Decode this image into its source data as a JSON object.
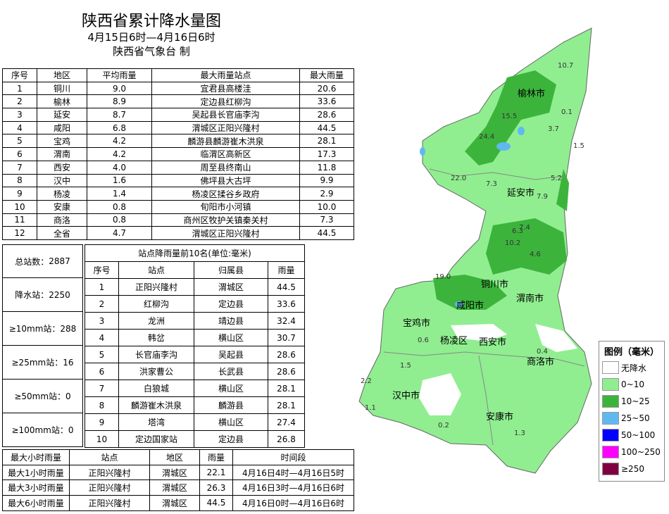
{
  "header": {
    "title": "陕西省累计降水量图",
    "period": "4月15日6时—4月16日6时",
    "issuer": "陕西省气象台 制"
  },
  "region_table": {
    "columns": [
      "序号",
      "地区",
      "平均雨量",
      "最大雨量站点",
      "最大雨量"
    ],
    "rows": [
      [
        "1",
        "铜川",
        "9.0",
        "宜君县高楼洼",
        "20.6"
      ],
      [
        "2",
        "榆林",
        "8.9",
        "定边县红柳沟",
        "33.6"
      ],
      [
        "3",
        "延安",
        "8.7",
        "吴起县长官庙李沟",
        "28.6"
      ],
      [
        "4",
        "咸阳",
        "6.8",
        "渭城区正阳兴隆村",
        "44.5"
      ],
      [
        "5",
        "宝鸡",
        "4.2",
        "麟游县麟游崔木洪泉",
        "28.1"
      ],
      [
        "6",
        "渭南",
        "4.2",
        "临渭区高新区",
        "17.3"
      ],
      [
        "7",
        "西安",
        "4.0",
        "周至县终南山",
        "11.8"
      ],
      [
        "8",
        "汉中",
        "1.6",
        "佛坪县大古坪",
        "9.9"
      ],
      [
        "9",
        "杨凌",
        "1.4",
        "杨凌区揉谷乡政府",
        "2.9"
      ],
      [
        "10",
        "安康",
        "0.8",
        "旬阳市小河镇",
        "10.0"
      ],
      [
        "11",
        "商洛",
        "0.8",
        "商州区牧护关镇秦关村",
        "7.3"
      ],
      [
        "12",
        "全省",
        "4.7",
        "渭城区正阳兴隆村",
        "44.5"
      ]
    ]
  },
  "summary": [
    {
      "label": "总站数：",
      "value": "2887"
    },
    {
      "label": "降水站：",
      "value": "2250"
    },
    {
      "label": "≥10mm站：",
      "value": "288"
    },
    {
      "label": "≥25mm站：",
      "value": "16"
    },
    {
      "label": "≥50mm站：",
      "value": "0"
    },
    {
      "label": "≥100mm站：",
      "value": "0"
    }
  ],
  "top10": {
    "title": "站点降雨量前10名(单位:毫米)",
    "columns": [
      "序号",
      "站点",
      "归属县",
      "雨量"
    ],
    "rows": [
      [
        "1",
        "正阳兴隆村",
        "渭城区",
        "44.5"
      ],
      [
        "2",
        "红柳沟",
        "定边县",
        "33.6"
      ],
      [
        "3",
        "龙洲",
        "靖边县",
        "32.4"
      ],
      [
        "4",
        "韩岔",
        "横山区",
        "30.7"
      ],
      [
        "5",
        "长官庙李沟",
        "吴起县",
        "28.6"
      ],
      [
        "6",
        "洪家曹公",
        "长武县",
        "28.6"
      ],
      [
        "7",
        "白狼城",
        "横山区",
        "28.1"
      ],
      [
        "8",
        "麟游崔木洪泉",
        "麟游县",
        "28.1"
      ],
      [
        "9",
        "塔湾",
        "横山区",
        "27.4"
      ],
      [
        "10",
        "定边国家站",
        "定边县",
        "26.8"
      ]
    ]
  },
  "hourly": {
    "columns": [
      "最大小时雨量",
      "站点",
      "地区",
      "雨量",
      "时间段"
    ],
    "rows": [
      [
        "最大1小时雨量",
        "正阳兴隆村",
        "渭城区",
        "22.1",
        "4月16日4时—4月16日5时"
      ],
      [
        "最大3小时雨量",
        "正阳兴隆村",
        "渭城区",
        "26.3",
        "4月16日3时—4月16日6时"
      ],
      [
        "最大6小时雨量",
        "正阳兴隆村",
        "渭城区",
        "44.5",
        "4月16日0时—4月16日6时"
      ]
    ]
  },
  "legend": {
    "title": "图例（毫米）",
    "items": [
      {
        "label": "无降水",
        "color": "#ffffff"
      },
      {
        "label": "0~10",
        "color": "#90ee90"
      },
      {
        "label": "10~25",
        "color": "#3cb43c"
      },
      {
        "label": "25~50",
        "color": "#60b8f0"
      },
      {
        "label": "50~100",
        "color": "#0000ff"
      },
      {
        "label": "100~250",
        "color": "#ff00ff"
      },
      {
        "label": "≥250",
        "color": "#800040"
      }
    ]
  },
  "map": {
    "cities": [
      "榆林市",
      "延安市",
      "铜川市",
      "渭南市",
      "咸阳市",
      "宝鸡市",
      "杨凌区",
      "西安市",
      "商洛市",
      "汉中市",
      "安康市"
    ],
    "values": [
      "10.7",
      "0.1",
      "3.7",
      "1.5",
      "24.4",
      "15.5",
      "22.0",
      "7.3",
      "7.9",
      "7.4",
      "6.3",
      "10.2",
      "4.6",
      "19.0",
      "2.2",
      "1.1",
      "0.2",
      "0.6",
      "1.5",
      "0.4",
      "1.3",
      "5.2"
    ]
  }
}
